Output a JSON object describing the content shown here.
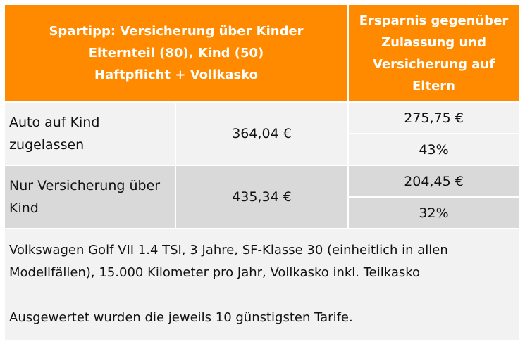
{
  "header": {
    "left_line1": "Spartipp: Versicherung über Kinder",
    "left_line2": "Elternteil (80), Kind (50)",
    "left_line3": "Haftpflicht + Vollkasko",
    "right_line1": "Ersparnis gegenüber",
    "right_line2": "Zulassung und",
    "right_line3": "Versicherung auf",
    "right_line4": "Eltern"
  },
  "rows": [
    {
      "label_line1": "Auto auf Kind",
      "label_line2": "zugelassen",
      "price": "364,04 €",
      "saving_amount": "275,75 €",
      "saving_percent": "43%"
    },
    {
      "label_line1": "Nur Versicherung über",
      "label_line2": "Kind",
      "price": "435,34 €",
      "saving_amount": "204,45 €",
      "saving_percent": "32%"
    }
  ],
  "notes": {
    "line1": "Volkswagen Golf VII 1.4 TSI, 3 Jahre, SF-Klasse 30 (einheitlich in allen",
    "line2": "Modellfällen), 15.000 Kilometer pro Jahr, Vollkasko inkl. Teilkasko",
    "line3": "Ausgewertet wurden die jeweils 10 günstigsten Tarife."
  },
  "colors": {
    "header_bg": "#ff8a00",
    "row_light": "#f2f2f2",
    "row_dark": "#d9d9d9"
  }
}
